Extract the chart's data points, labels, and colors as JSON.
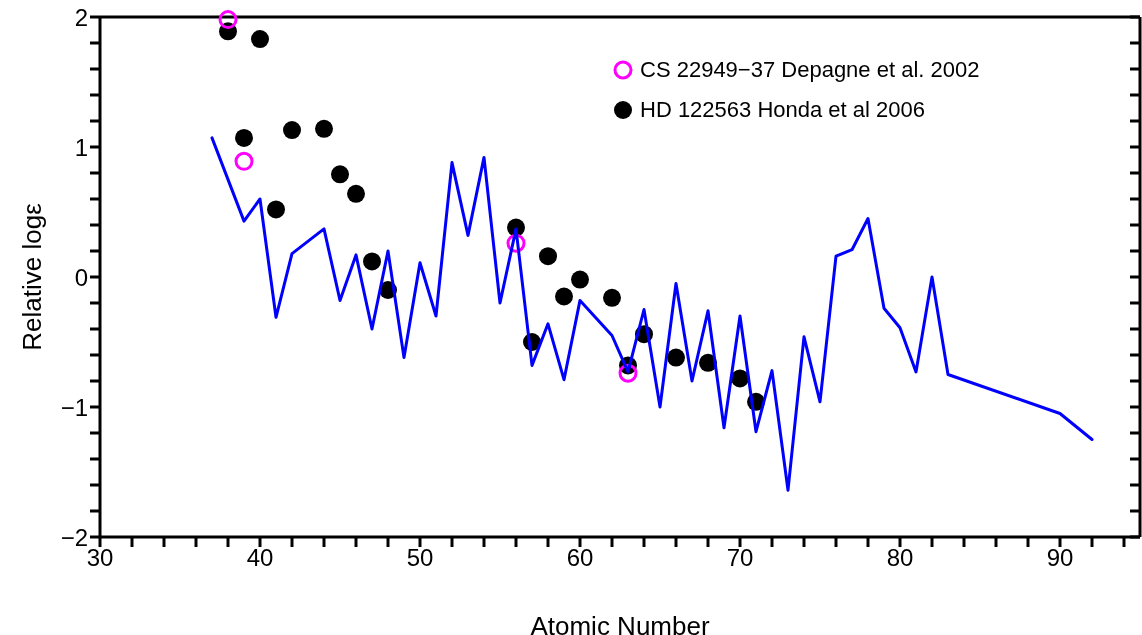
{
  "chart_data": {
    "type": "scatter",
    "xlabel": "Atomic Number",
    "ylabel": "Relative logε",
    "xlim": [
      30,
      95
    ],
    "xticks": [
      30,
      {
        "value": 32,
        "label": null
      },
      {
        "value": 34,
        "label": null
      },
      {
        "value": 36,
        "label": null
      },
      {
        "value": 38,
        "label": null
      },
      40,
      {
        "value": 42,
        "label": null
      },
      {
        "value": 44,
        "label": null
      },
      {
        "value": 46,
        "label": null
      },
      {
        "value": 48,
        "label": null
      },
      50,
      {
        "value": 52,
        "label": null
      },
      {
        "value": 54,
        "label": null
      },
      {
        "value": 56,
        "label": null
      },
      {
        "value": 58,
        "label": null
      },
      60,
      {
        "value": 62,
        "label": null
      },
      {
        "value": 64,
        "label": null
      },
      {
        "value": 66,
        "label": null
      },
      {
        "value": 68,
        "label": null
      },
      70,
      {
        "value": 72,
        "label": null
      },
      {
        "value": 74,
        "label": null
      },
      {
        "value": 76,
        "label": null
      },
      {
        "value": 78,
        "label": null
      },
      80,
      {
        "value": 82,
        "label": null
      },
      {
        "value": 84,
        "label": null
      },
      {
        "value": 86,
        "label": null
      },
      {
        "value": 88,
        "label": null
      },
      90,
      {
        "value": 92,
        "label": null
      },
      {
        "value": 94,
        "label": null
      }
    ],
    "ylim": [
      -2,
      2
    ],
    "yticks": [
      -2,
      {
        "value": -1.8,
        "label": null
      },
      {
        "value": -1.6,
        "label": null
      },
      {
        "value": -1.4,
        "label": null
      },
      {
        "value": -1.2,
        "label": null
      },
      -1,
      {
        "value": -0.8,
        "label": null
      },
      {
        "value": -0.6,
        "label": null
      },
      {
        "value": -0.4,
        "label": null
      },
      {
        "value": -0.2,
        "label": null
      },
      0,
      {
        "value": 0.2,
        "label": null
      },
      {
        "value": 0.4,
        "label": null
      },
      {
        "value": 0.6,
        "label": null
      },
      {
        "value": 0.8,
        "label": null
      },
      1,
      {
        "value": 1.2,
        "label": null
      },
      {
        "value": 1.4,
        "label": null
      },
      {
        "value": 1.6,
        "label": null
      },
      {
        "value": 1.8,
        "label": null
      },
      2
    ],
    "grid": false,
    "legend": "top right",
    "marker": "circle",
    "series": [
      {
        "type": "line",
        "color": "#0000ff",
        "marker": "none",
        "x": [
          37,
          39,
          40,
          41,
          42,
          44,
          45,
          46,
          47,
          48,
          49,
          50,
          51,
          52,
          53,
          54,
          55,
          56,
          57,
          58,
          59,
          60,
          62,
          63,
          64,
          65,
          66,
          67,
          68,
          69,
          70,
          71,
          72,
          73,
          74,
          75,
          76,
          77,
          78,
          79,
          80,
          81,
          82,
          83,
          90,
          92
        ],
        "values": [
          1.07,
          0.43,
          0.6,
          -0.31,
          0.18,
          0.37,
          -0.18,
          0.17,
          -0.4,
          0.2,
          -0.62,
          0.11,
          -0.3,
          0.88,
          0.32,
          0.92,
          -0.2,
          0.37,
          -0.68,
          -0.36,
          -0.79,
          -0.18,
          -0.45,
          -0.73,
          -0.25,
          -1.0,
          -0.05,
          -0.8,
          -0.26,
          -1.16,
          -0.3,
          -1.19,
          -0.72,
          -1.64,
          -0.46,
          -0.96,
          0.16,
          0.21,
          0.45,
          -0.24,
          -0.39,
          -0.73,
          0.0,
          -0.75,
          -1.05,
          -1.25
        ]
      },
      {
        "name": "HD 122563 Honda et al 2006",
        "color": "#000000",
        "x": [
          38,
          39,
          40,
          41,
          42,
          44,
          45,
          46,
          47,
          48,
          56,
          57,
          58,
          59,
          60,
          62,
          63,
          64,
          66,
          68,
          70,
          71
        ],
        "values": [
          1.89,
          1.07,
          1.83,
          0.52,
          1.13,
          1.14,
          0.79,
          0.64,
          0.12,
          -0.1,
          0.38,
          -0.5,
          0.16,
          -0.15,
          -0.02,
          -0.16,
          -0.68,
          -0.44,
          -0.62,
          -0.66,
          -0.78,
          -0.96
        ]
      },
      {
        "name": "CS 22949−37 Depagne et al. 2002",
        "color": "#ff00ff",
        "x": [
          38,
          39,
          56,
          63
        ],
        "values": [
          1.98,
          0.89,
          0.26,
          -0.74
        ]
      }
    ]
  }
}
